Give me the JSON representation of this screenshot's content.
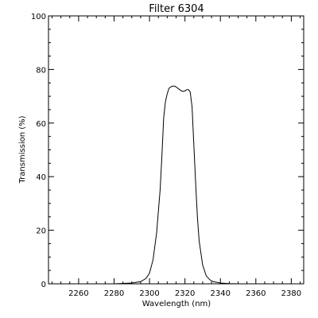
{
  "chart_data": {
    "type": "line",
    "title": "Filter 6304",
    "xlabel": "Wavelength (nm)",
    "ylabel": "Transmission (%)",
    "xlim": [
      2243,
      2387
    ],
    "ylim": [
      0,
      100
    ],
    "x_ticks": [
      2260,
      2280,
      2300,
      2320,
      2340,
      2360,
      2380
    ],
    "y_ticks": [
      0,
      20,
      40,
      60,
      80,
      100
    ],
    "grid": false,
    "line_color": "#000000",
    "series": [
      {
        "x": [
          2280,
          2290,
          2295,
          2298,
          2300,
          2302,
          2304,
          2306,
          2307,
          2308,
          2309,
          2310,
          2311,
          2312,
          2313,
          2314,
          2315,
          2316,
          2317,
          2318,
          2319,
          2320,
          2321,
          2322,
          2323,
          2324,
          2325,
          2326,
          2327,
          2328,
          2330,
          2332,
          2334,
          2336,
          2340,
          2345,
          2350
        ],
        "y": [
          0,
          0.3,
          0.8,
          2,
          4,
          9,
          19,
          35,
          48,
          62,
          68,
          71,
          73,
          73.5,
          73.8,
          73.8,
          73.5,
          73,
          72.5,
          72,
          71.8,
          72,
          72.5,
          72.5,
          71.5,
          66,
          52,
          38,
          25,
          16,
          7,
          3,
          1.5,
          0.8,
          0.3,
          0.1,
          0
        ]
      }
    ]
  }
}
